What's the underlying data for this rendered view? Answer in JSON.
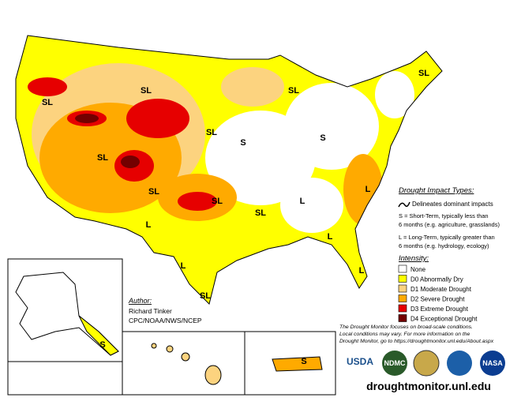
{
  "impact_types": {
    "title": "Drought Impact Types:",
    "line": "Delineates dominant impacts",
    "short": [
      "S = Short-Term, typically less than",
      "6 months (e.g. agriculture, grasslands)"
    ],
    "long": [
      "L = Long-Term, typically greater than",
      "6 months (e.g. hydrology, ecology)"
    ]
  },
  "intensity": {
    "title": "Intensity:",
    "levels": [
      {
        "label": "None",
        "color": "#ffffff"
      },
      {
        "label": "D0 Abnormally Dry",
        "color": "#ffff00"
      },
      {
        "label": "D1 Moderate Drought",
        "color": "#fcd37f"
      },
      {
        "label": "D2 Severe Drought",
        "color": "#ffaa00"
      },
      {
        "label": "D3 Extreme Drought",
        "color": "#e60000"
      },
      {
        "label": "D4 Exceptional Drought",
        "color": "#730000"
      }
    ]
  },
  "author": {
    "title": "Author:",
    "lines": [
      "Richard Tinker",
      "CPC/NOAA/NWS/NCEP"
    ]
  },
  "note": [
    "The Drought Monitor focuses on broad-scale conditions.",
    "Local conditions may vary. For more information on the",
    "Drought Monitor, go to https://droughtmonitor.unl.edu/About.aspx"
  ],
  "logos": [
    "USDA",
    "NDMC",
    "NASA"
  ],
  "url": "droughtmonitor.unl.edu",
  "map_labels": [
    "SL",
    "SL",
    "SL",
    "SL",
    "SL",
    "S",
    "S",
    "SL",
    "SL",
    "SL",
    "SL",
    "L",
    "L",
    "L",
    "L",
    "L",
    "L",
    "SL",
    "S",
    "S"
  ]
}
